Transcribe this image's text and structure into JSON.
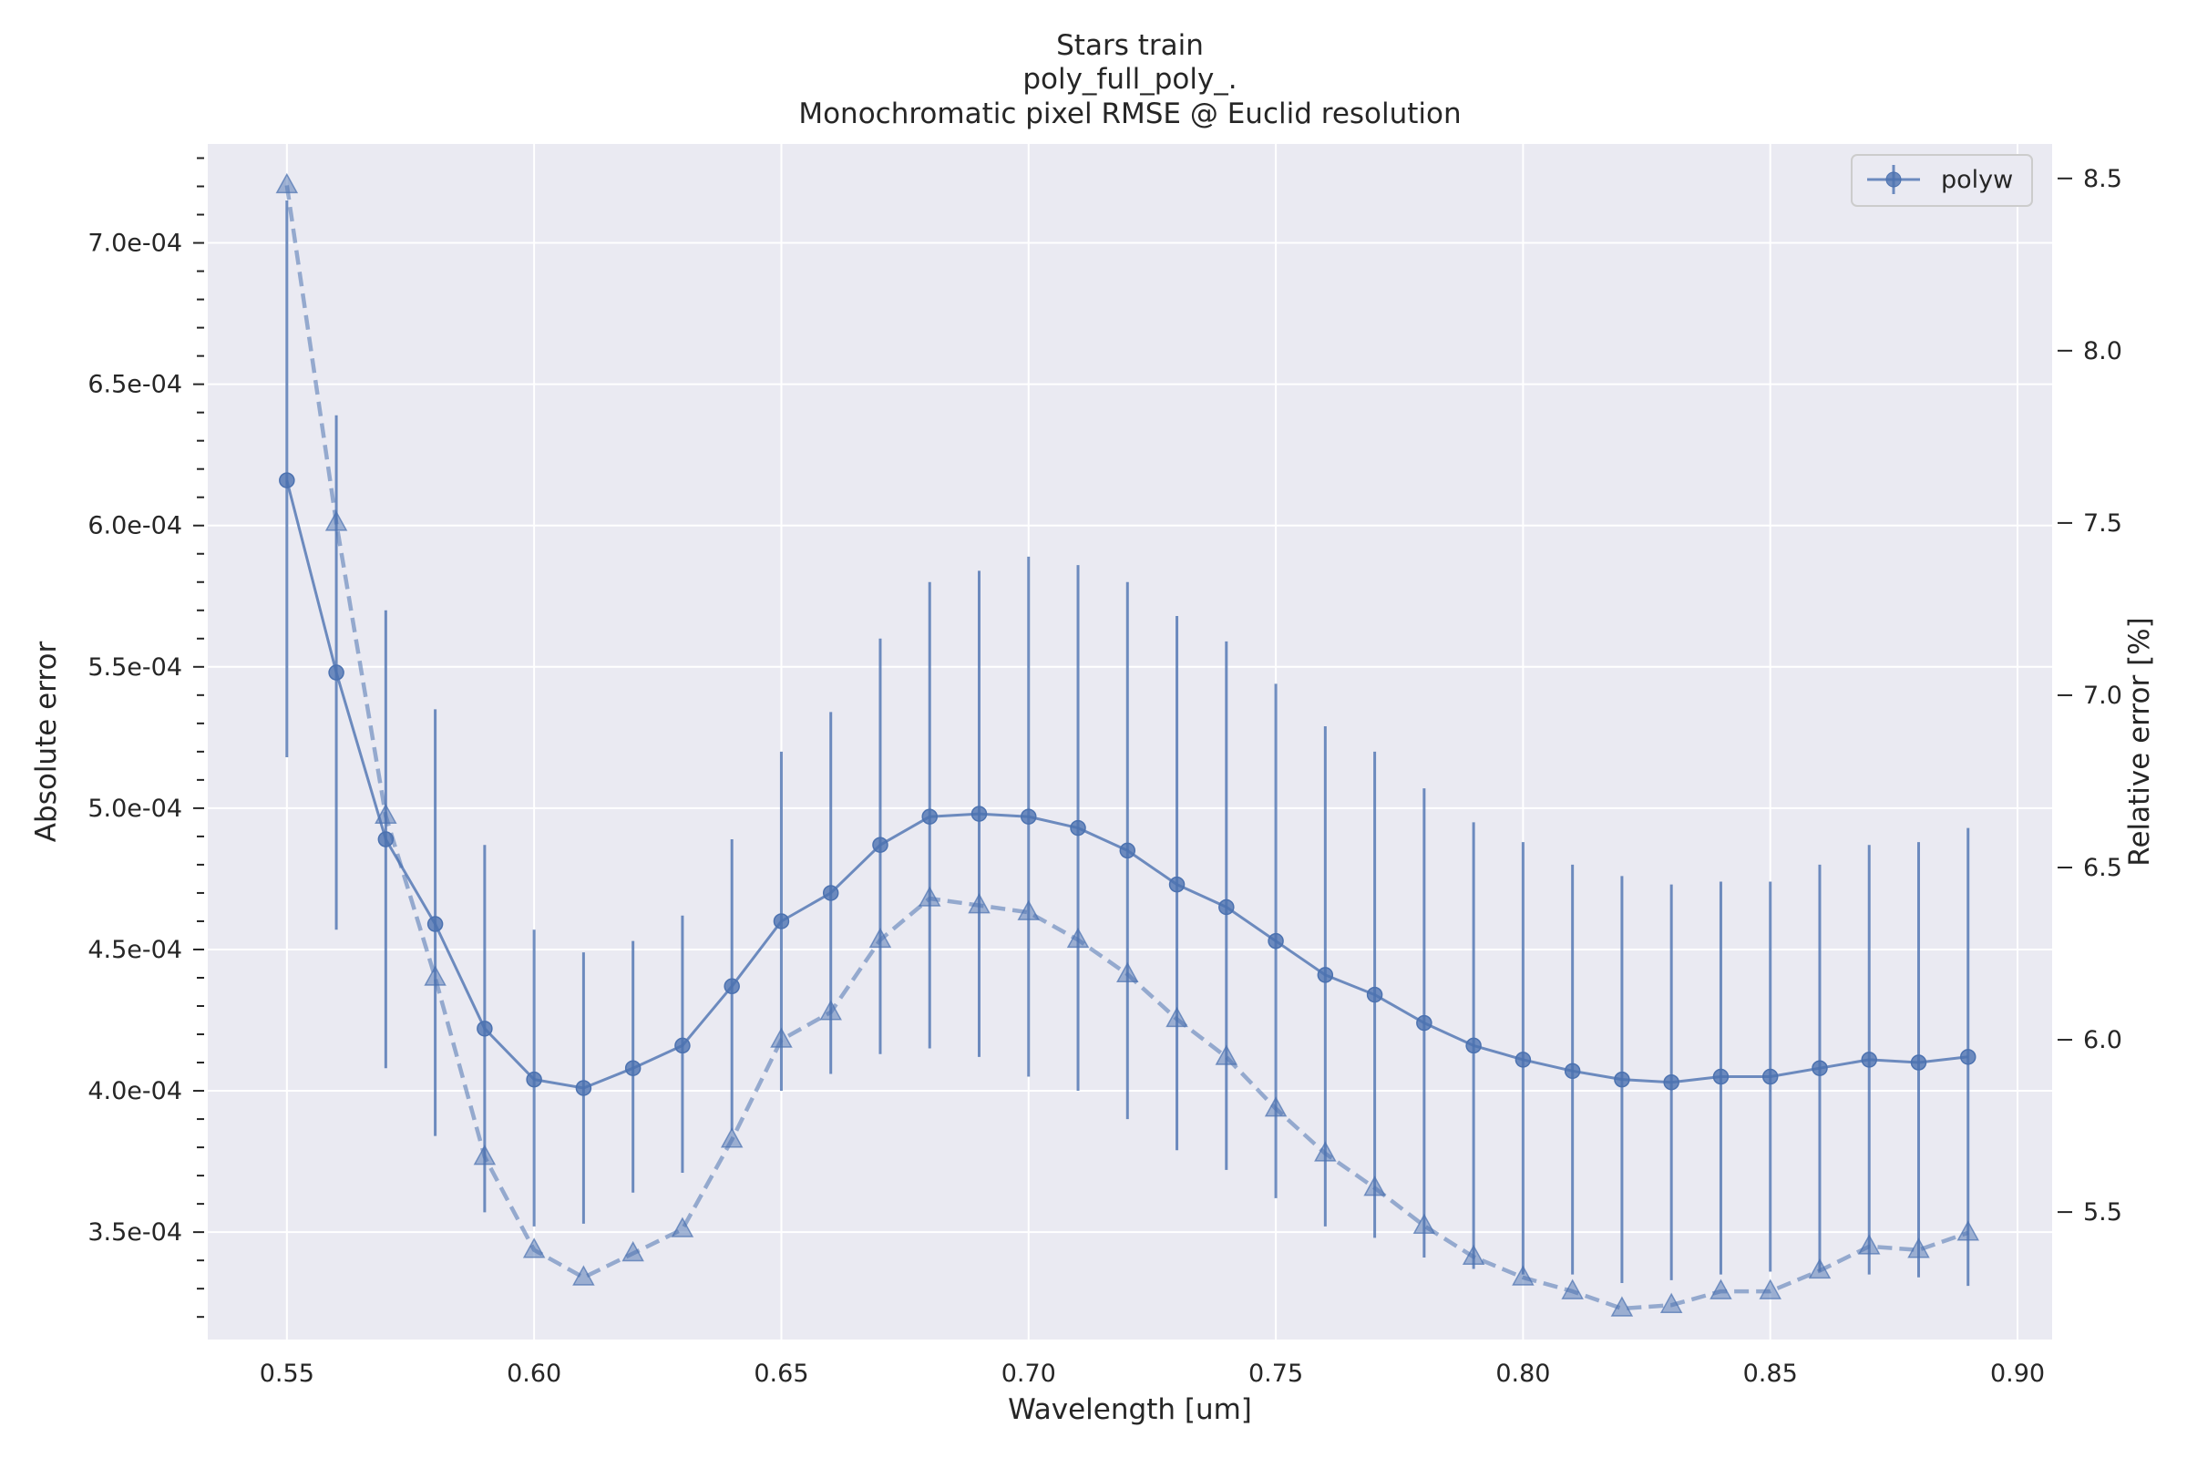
{
  "chart_data": {
    "type": "line",
    "title_lines": [
      "Stars train",
      "poly_full_poly_.",
      "Monochromatic pixel RMSE @ Euclid resolution"
    ],
    "xlabel": "Wavelength [um]",
    "ylabel": "Absolute error",
    "y2label": "Relative error [%]",
    "xlim": [
      0.534,
      0.907
    ],
    "ylim": [
      0.000312,
      0.000735
    ],
    "y2lim": [
      5.13,
      8.6
    ],
    "xticks": [
      0.55,
      0.6,
      0.65,
      0.7,
      0.75,
      0.8,
      0.85,
      0.9
    ],
    "xtick_labels": [
      "0.55",
      "0.60",
      "0.65",
      "0.70",
      "0.75",
      "0.80",
      "0.85",
      "0.90"
    ],
    "yticks": [
      0.00035,
      0.0004,
      0.00045,
      0.0005,
      0.00055,
      0.0006,
      0.00065,
      0.0007
    ],
    "ytick_labels": [
      "3.5e-04",
      "4.0e-04",
      "4.5e-04",
      "5.0e-04",
      "5.5e-04",
      "6.0e-04",
      "6.5e-04",
      "7.0e-04"
    ],
    "y2ticks": [
      5.5,
      6.0,
      6.5,
      7.0,
      7.5,
      8.0,
      8.5
    ],
    "y2tick_labels": [
      "5.5",
      "6.0",
      "6.5",
      "7.0",
      "7.5",
      "8.0",
      "8.5"
    ],
    "grid": true,
    "legend_position": "top-right",
    "color": "#4c72b0",
    "background": "#eaeaf2",
    "x": [
      0.55,
      0.56,
      0.57,
      0.58,
      0.59,
      0.6,
      0.61,
      0.62,
      0.63,
      0.64,
      0.65,
      0.66,
      0.67,
      0.68,
      0.69,
      0.7,
      0.71,
      0.72,
      0.73,
      0.74,
      0.75,
      0.76,
      0.77,
      0.78,
      0.79,
      0.8,
      0.81,
      0.82,
      0.83,
      0.84,
      0.85,
      0.86,
      0.87,
      0.88,
      0.89
    ],
    "series": [
      {
        "name": "polyw",
        "axis": "left",
        "marker": "circle",
        "values": [
          0.000616,
          0.000548,
          0.000489,
          0.000459,
          0.000422,
          0.000404,
          0.000401,
          0.000408,
          0.000416,
          0.000437,
          0.00046,
          0.00047,
          0.000487,
          0.000497,
          0.000498,
          0.000497,
          0.000493,
          0.000485,
          0.000473,
          0.000465,
          0.000453,
          0.000441,
          0.000434,
          0.000424,
          0.000416,
          0.000411,
          0.000407,
          0.000404,
          0.000403,
          0.000405,
          0.000405,
          0.000408,
          0.000411,
          0.00041,
          0.000412
        ],
        "error_low": [
          0.000518,
          0.000457,
          0.000408,
          0.000384,
          0.000357,
          0.000352,
          0.000353,
          0.000364,
          0.000371,
          0.000386,
          0.0004,
          0.000406,
          0.000413,
          0.000415,
          0.000412,
          0.000405,
          0.0004,
          0.00039,
          0.000379,
          0.000372,
          0.000362,
          0.000352,
          0.000348,
          0.000341,
          0.000337,
          0.000335,
          0.000335,
          0.000332,
          0.000333,
          0.000335,
          0.000336,
          0.000336,
          0.000335,
          0.000334,
          0.000331
        ],
        "error_high": [
          0.000715,
          0.000639,
          0.00057,
          0.000535,
          0.000487,
          0.000457,
          0.000449,
          0.000453,
          0.000462,
          0.000489,
          0.00052,
          0.000534,
          0.00056,
          0.00058,
          0.000584,
          0.000589,
          0.000586,
          0.00058,
          0.000568,
          0.000559,
          0.000544,
          0.000529,
          0.00052,
          0.000507,
          0.000495,
          0.000488,
          0.00048,
          0.000476,
          0.000473,
          0.000474,
          0.000474,
          0.00048,
          0.000487,
          0.000488,
          0.000493
        ]
      },
      {
        "axis": "right",
        "marker": "triangle",
        "style": "dashed",
        "values": [
          8.48,
          7.5,
          6.65,
          6.18,
          5.66,
          5.39,
          5.31,
          5.38,
          5.45,
          5.71,
          6.0,
          6.08,
          6.29,
          6.41,
          6.39,
          6.37,
          6.29,
          6.19,
          6.06,
          5.95,
          5.8,
          5.67,
          5.57,
          5.46,
          5.37,
          5.31,
          5.27,
          5.22,
          5.23,
          5.27,
          5.27,
          5.33,
          5.4,
          5.39,
          5.44
        ]
      }
    ]
  }
}
